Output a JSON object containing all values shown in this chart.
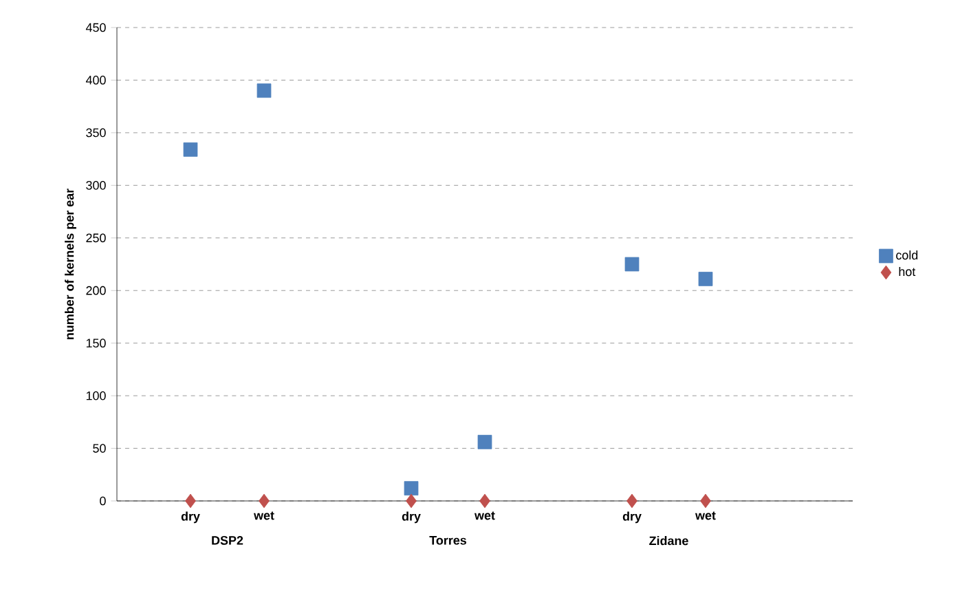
{
  "chart_data": {
    "type": "scatter",
    "ylabel": "number of kernels per ear",
    "categories": [
      "dry",
      "wet",
      null,
      "dry",
      "wet",
      null,
      "dry",
      "wet"
    ],
    "series": [
      {
        "name": "cold",
        "color": "#4f81bd",
        "marker": "square",
        "values": [
          334,
          390,
          null,
          12,
          56,
          null,
          225,
          211
        ]
      },
      {
        "name": "hot",
        "color": "#c0504d",
        "marker": "diamond",
        "values": [
          0,
          0,
          null,
          0,
          0,
          null,
          0,
          0
        ]
      }
    ],
    "annotations": [
      "DSP2",
      "Torres",
      "Zidane"
    ],
    "ylim": [
      0,
      450
    ],
    "yticks": [
      0,
      50,
      100,
      150,
      200,
      250,
      300,
      350,
      400,
      450
    ],
    "grid": "y",
    "legend": "right"
  }
}
